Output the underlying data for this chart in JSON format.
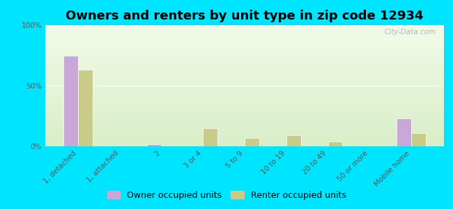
{
  "title": "Owners and renters by unit type in zip code 12934",
  "categories": [
    "1, detached",
    "1, attached",
    "2",
    "3 or 4",
    "5 to 9",
    "10 to 19",
    "20 to 49",
    "50 or more",
    "Mobile home"
  ],
  "owner_values": [
    75,
    0,
    2,
    0,
    0,
    0,
    0,
    0,
    23
  ],
  "renter_values": [
    63,
    0,
    0,
    15,
    7,
    9,
    4,
    0,
    11
  ],
  "owner_color": "#c8a8d8",
  "renter_color": "#c8cc88",
  "outer_background": "#00e5ff",
  "grad_top": "#d8eec8",
  "grad_bottom": "#f2fae8",
  "ylim": [
    0,
    100
  ],
  "yticks": [
    0,
    50,
    100
  ],
  "ytick_labels": [
    "0%",
    "50%",
    "100%"
  ],
  "bar_width": 0.35,
  "legend_owner": "Owner occupied units",
  "legend_renter": "Renter occupied units",
  "title_fontsize": 13,
  "axis_fontsize": 7.5,
  "legend_fontsize": 9,
  "watermark": "City-Data.com"
}
